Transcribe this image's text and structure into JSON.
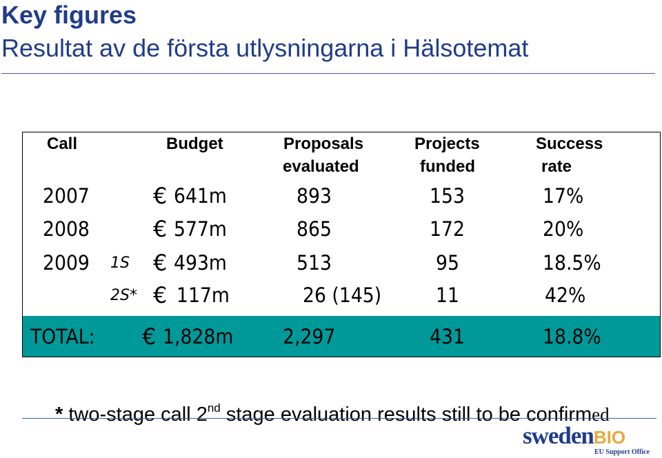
{
  "title": "Key figures",
  "subtitle": "Resultat av de första utlysningarna i Hälsotemat",
  "table": {
    "headers": {
      "call": "Call",
      "budget": "Budget",
      "proposals_1": "Proposals",
      "proposals_2": "evaluated",
      "projects_1": "Projects",
      "projects_2": "funded",
      "success_1": "Success",
      "success_2": "rate"
    },
    "rows": [
      {
        "call": "2007",
        "stage": "",
        "budget": "641m",
        "proposals": "893",
        "projects": "153",
        "success": "17%"
      },
      {
        "call": "2008",
        "stage": "",
        "budget": "577m",
        "proposals": "865",
        "projects": "172",
        "success": "20%"
      },
      {
        "call": "2009",
        "stage": "1S",
        "budget": "493m",
        "proposals": "513",
        "projects": "95",
        "success": "18.5%"
      },
      {
        "call": "",
        "stage": "2S*",
        "budget": "117m",
        "proposals": "26 (145)",
        "projects": "11",
        "success": "42%"
      }
    ],
    "total": {
      "label": "TOTAL:",
      "budget": "1,828m",
      "proposals": "2,297",
      "projects": "431",
      "success": "18.8%"
    },
    "currency_symbol": "€",
    "colors": {
      "total_bar": "#009999"
    }
  },
  "footnote": {
    "star": "*",
    "text_a": " two-stage call 2",
    "sup": "nd",
    "text_b": " stage evaluation results still to be confirm",
    "text_c": "ed"
  },
  "logo": {
    "main": "sweden",
    "accent": "BIO",
    "sub": "EU Support Office",
    "colors": {
      "main": "#1f3c8a",
      "accent": "#e8a93c"
    }
  },
  "colors": {
    "title": "#1f3c8a"
  }
}
